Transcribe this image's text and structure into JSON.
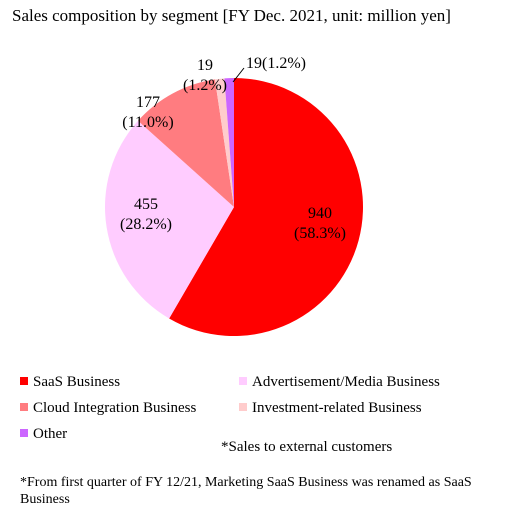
{
  "chart_data": {
    "type": "pie",
    "title": "Sales composition by segment [FY Dec. 2021, unit: million yen]",
    "series": [
      {
        "name": "SaaS Business",
        "value": 940,
        "percent_label": "(58.3%)",
        "color": "#ff0000"
      },
      {
        "name": "Advertisement/Media Business",
        "value": 455,
        "percent_label": "(28.2%)",
        "color": "#ffccff"
      },
      {
        "name": "Cloud Integration Business",
        "value": 177,
        "percent_label": "(11.0%)",
        "color": "#ff7c80"
      },
      {
        "name": "Investment-related Business",
        "value": 19,
        "percent_label": "(1.2%)",
        "color": "#ffcccc"
      },
      {
        "name": "Other",
        "value": 19,
        "percent_label": "(1.2%)",
        "color": "#cc66ff"
      }
    ],
    "legend_position": "bottom"
  },
  "notes": {
    "external": "*Sales to external customers",
    "renamed": "*From first quarter of FY 12/21, Marketing SaaS Business was renamed as SaaS Business"
  }
}
